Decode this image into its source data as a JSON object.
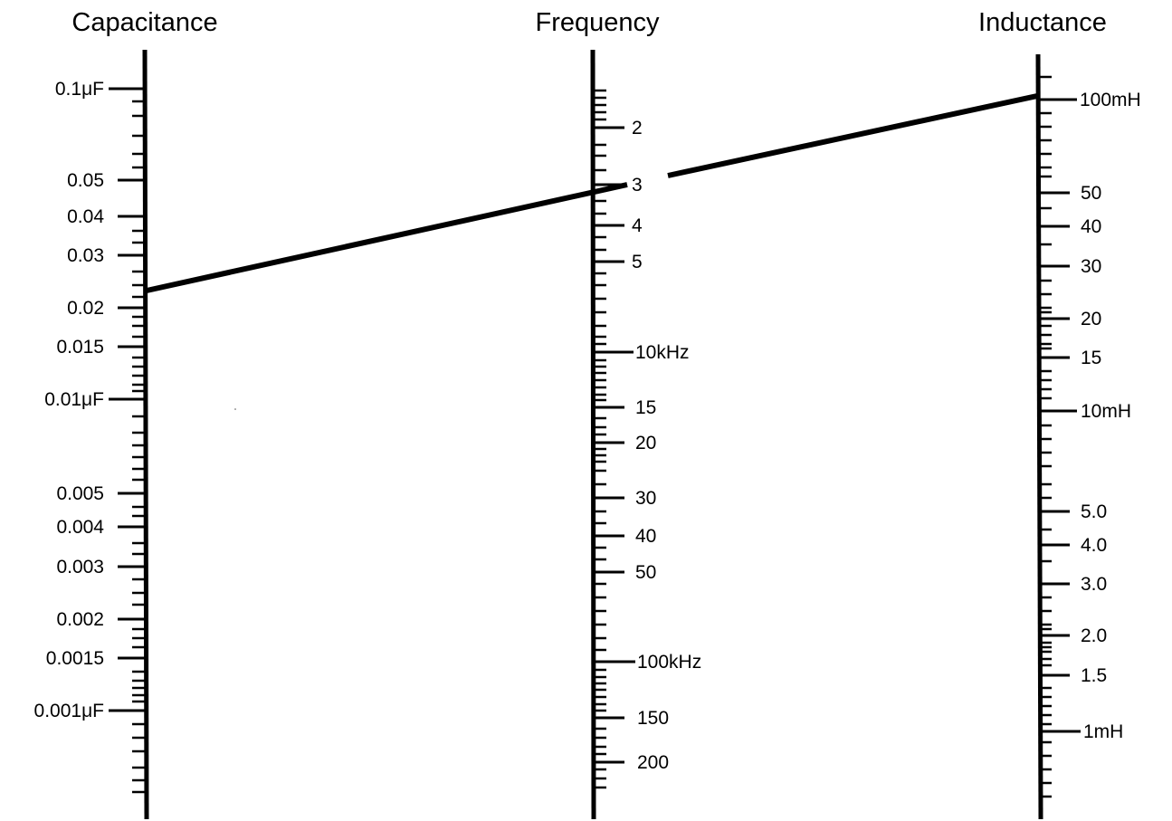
{
  "nomogram": {
    "scales": [
      {
        "id": "capacitance",
        "title": "Capacitance",
        "labels": [
          "0.1μF",
          "0.05",
          "0.04",
          "0.03",
          "0.02",
          "0.015",
          "0.01μF",
          "0.005",
          "0.004",
          "0.003",
          "0.002",
          "0.0015",
          "0.001μF"
        ]
      },
      {
        "id": "frequency",
        "title": "Frequency",
        "labels": [
          "2",
          "3",
          "4",
          "5",
          "10kHz",
          "15",
          "20",
          "30",
          "40",
          "50",
          "100kHz",
          "150",
          "200"
        ]
      },
      {
        "id": "inductance",
        "title": "Inductance",
        "labels": [
          "100mH",
          "50",
          "40",
          "30",
          "20",
          "15",
          "10mH",
          "5.0",
          "4.0",
          "3.0",
          "2.0",
          "1.5",
          "1mH"
        ]
      }
    ],
    "solution_line": {
      "capacitance": "0.022μF",
      "frequency": "3kHz",
      "inductance": "110mH"
    }
  }
}
